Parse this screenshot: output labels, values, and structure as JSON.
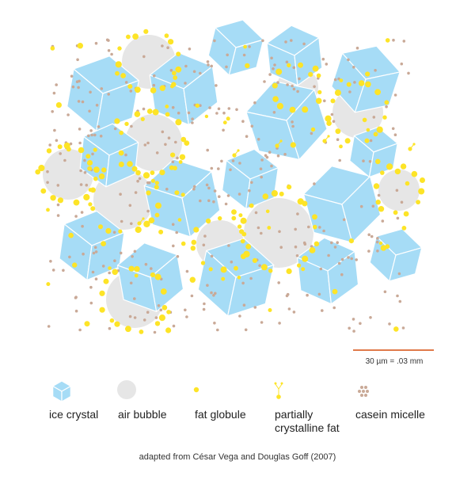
{
  "scale_bar": {
    "label": "30 µm = .03 mm",
    "color": "#e07a4a"
  },
  "legend": {
    "ice_crystal": "ice crystal",
    "air_bubble": "air bubble",
    "fat_globule": "fat globule",
    "partially_crystalline_fat": "partially crystalline fat",
    "casein_micelle": "casein micelle"
  },
  "caption": "adapted from César Vega and Douglas Goff (2007)",
  "colors": {
    "ice_crystal": "#a6dcf6",
    "ice_crystal_edge": "#ffffff",
    "air_bubble": "#e6e6e6",
    "fat_globule": "#fde427",
    "casein_micelle": "#c9a997"
  }
}
